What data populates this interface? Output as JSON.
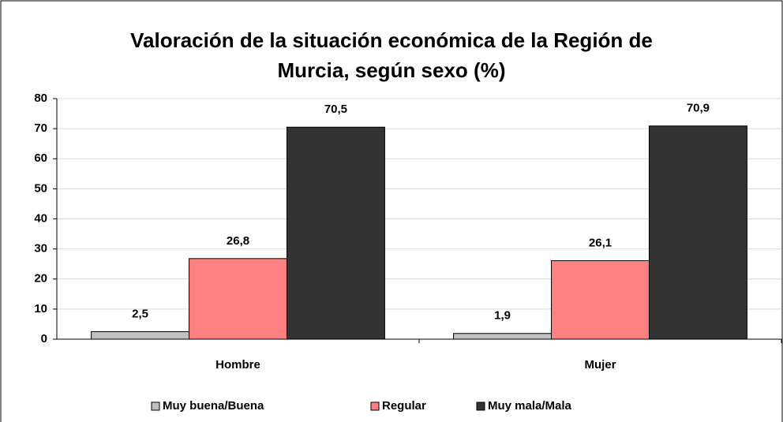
{
  "chart_data": {
    "type": "bar",
    "title": "Valoración de la situación económica de la Región de Murcia, según sexo (%)",
    "categories": [
      "Hombre",
      "Mujer"
    ],
    "series": [
      {
        "name": "Muy buena/Buena",
        "color": "#c0c0c0",
        "values": [
          2.5,
          1.9
        ],
        "value_labels": [
          "2,5",
          "1,9"
        ]
      },
      {
        "name": "Regular",
        "color": "#ff8080",
        "values": [
          26.8,
          26.1
        ],
        "value_labels": [
          "26,8",
          "26,1"
        ]
      },
      {
        "name": "Muy mala/Mala",
        "color": "#333333",
        "values": [
          70.5,
          70.9
        ],
        "value_labels": [
          "70,5",
          "70,9"
        ]
      }
    ],
    "ylim": [
      0,
      80
    ],
    "yticks": [
      0,
      10,
      20,
      30,
      40,
      50,
      60,
      70,
      80
    ],
    "grid": true,
    "legend": "bottom"
  }
}
